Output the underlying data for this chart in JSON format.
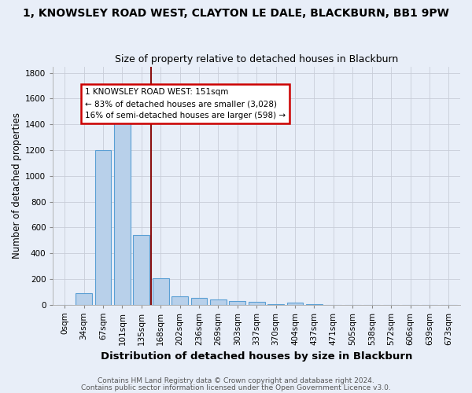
{
  "title": "1, KNOWSLEY ROAD WEST, CLAYTON LE DALE, BLACKBURN, BB1 9PW",
  "subtitle": "Size of property relative to detached houses in Blackburn",
  "xlabel": "Distribution of detached houses by size in Blackburn",
  "ylabel": "Number of detached properties",
  "bin_labels": [
    "0sqm",
    "34sqm",
    "67sqm",
    "101sqm",
    "135sqm",
    "168sqm",
    "202sqm",
    "236sqm",
    "269sqm",
    "303sqm",
    "337sqm",
    "370sqm",
    "404sqm",
    "437sqm",
    "471sqm",
    "505sqm",
    "538sqm",
    "572sqm",
    "606sqm",
    "639sqm",
    "673sqm"
  ],
  "bin_counts": [
    0,
    90,
    1200,
    1450,
    540,
    205,
    65,
    50,
    40,
    28,
    22,
    5,
    15,
    2,
    0,
    0,
    0,
    0,
    0,
    0,
    0
  ],
  "bar_color": "#b8d0ea",
  "bar_edge_color": "#5a9fd4",
  "vline_color": "#8b1010",
  "annotation_text": "1 KNOWSLEY ROAD WEST: 151sqm\n← 83% of detached houses are smaller (3,028)\n16% of semi-detached houses are larger (598) →",
  "annotation_box_color": "white",
  "annotation_box_edge_color": "#cc0000",
  "ylim": [
    0,
    1850
  ],
  "yticks": [
    0,
    200,
    400,
    600,
    800,
    1000,
    1200,
    1400,
    1600,
    1800
  ],
  "footer1": "Contains HM Land Registry data © Crown copyright and database right 2024.",
  "footer2": "Contains public sector information licensed under the Open Government Licence v3.0.",
  "bg_color": "#e8eef8",
  "grid_color": "#c8cdd8",
  "title_fontsize": 10,
  "subtitle_fontsize": 9,
  "xlabel_fontsize": 9.5,
  "ylabel_fontsize": 8.5,
  "tick_fontsize": 7.5,
  "annotation_fontsize": 7.5,
  "footer_fontsize": 6.5
}
